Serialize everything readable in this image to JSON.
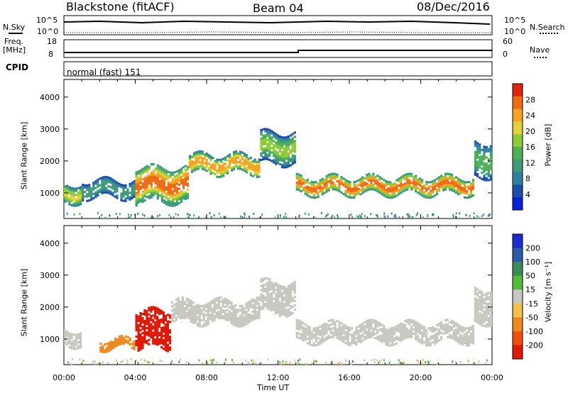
{
  "header": {
    "station": "Blackstone (fitACF)",
    "beam": "Beam 04",
    "date": "08/Dec/2016"
  },
  "top_panels": {
    "nsky_label": "N.Sky",
    "nsearch_label": "N.Search",
    "nsky_ticks": [
      "10^5",
      "10^0"
    ],
    "nsearch_ticks": [
      "10^5",
      "10^0"
    ],
    "freq_label": "Freq.",
    "freq_unit": "[MHz]",
    "freq_ticks": [
      "18",
      "8"
    ],
    "nave_label": "Nave",
    "nave_ticks": [
      "60",
      "0"
    ],
    "cpid_label": "CPID",
    "cpid_value": "normal (fast) 151"
  },
  "chart_data": [
    {
      "type": "heatmap",
      "title": "",
      "ylabel": "Slant Range [km]",
      "xlabel": "",
      "yticks": [
        "1000",
        "2000",
        "3000",
        "4000"
      ],
      "ylim": [
        200,
        4550
      ],
      "xlim_hours": [
        0,
        24
      ],
      "colorbar": {
        "label": "Power [dB]",
        "ticks": [
          "4",
          "8",
          "12",
          "16",
          "20",
          "24",
          "28"
        ],
        "range": [
          0,
          32
        ],
        "colors": [
          "#0a1fd6",
          "#1f4ea8",
          "#2f7fa0",
          "#3f9a7a",
          "#4fae5a",
          "#8ccc3a",
          "#e0d23c",
          "#f4a224",
          "#ee6a14",
          "#e0240c"
        ]
      },
      "description_bands": [
        {
          "hours": [
            0,
            1
          ],
          "range_km": [
            700,
            1300
          ],
          "power_db": 16
        },
        {
          "hours": [
            1,
            4
          ],
          "range_km": [
            850,
            1400
          ],
          "power_db": 10
        },
        {
          "hours": [
            4,
            7
          ],
          "range_km": [
            700,
            1800
          ],
          "power_db": 22
        },
        {
          "hours": [
            7,
            11
          ],
          "range_km": [
            1600,
            2200
          ],
          "power_db": 20
        },
        {
          "hours": [
            11,
            13
          ],
          "range_km": [
            1900,
            2900
          ],
          "power_db": 14
        },
        {
          "hours": [
            13,
            23
          ],
          "range_km": [
            950,
            1500
          ],
          "power_db": 22
        },
        {
          "hours": [
            23,
            24
          ],
          "range_km": [
            1500,
            2600
          ],
          "power_db": 12
        }
      ]
    },
    {
      "type": "heatmap",
      "title": "",
      "ylabel": "Slant Range [km]",
      "xlabel": "Time UT",
      "yticks": [
        "1000",
        "2000",
        "3000",
        "4000"
      ],
      "xticks": [
        "00:00",
        "04:00",
        "08:00",
        "12:00",
        "16:00",
        "20:00",
        "00:00"
      ],
      "ylim": [
        200,
        4550
      ],
      "xlim_hours": [
        0,
        24
      ],
      "colorbar": {
        "label": "Velocity [m s⁻¹]",
        "ticks": [
          "200",
          "100",
          "50",
          "15",
          "-15",
          "-50",
          "-100",
          "-200"
        ],
        "colors": [
          "#1c2cd0",
          "#2a5aa8",
          "#3a8a5a",
          "#55bb3a",
          "#c8c8c0",
          "#f2c050",
          "#f08a20",
          "#ee5010",
          "#e01808"
        ]
      },
      "description_bands": [
        {
          "hours": [
            0,
            1
          ],
          "range_km": [
            800,
            1300
          ],
          "velocity": 0
        },
        {
          "hours": [
            2,
            4
          ],
          "range_km": [
            700,
            1000
          ],
          "velocity": -60
        },
        {
          "hours": [
            4,
            6
          ],
          "range_km": [
            700,
            1900
          ],
          "velocity": -200
        },
        {
          "hours": [
            6,
            11
          ],
          "range_km": [
            1500,
            2200
          ],
          "velocity": 0
        },
        {
          "hours": [
            11,
            13
          ],
          "range_km": [
            1800,
            2800
          ],
          "velocity": 0
        },
        {
          "hours": [
            13,
            23
          ],
          "range_km": [
            900,
            1500
          ],
          "velocity": 0
        },
        {
          "hours": [
            23,
            24
          ],
          "range_km": [
            1500,
            2600
          ],
          "velocity": 0
        }
      ]
    }
  ]
}
